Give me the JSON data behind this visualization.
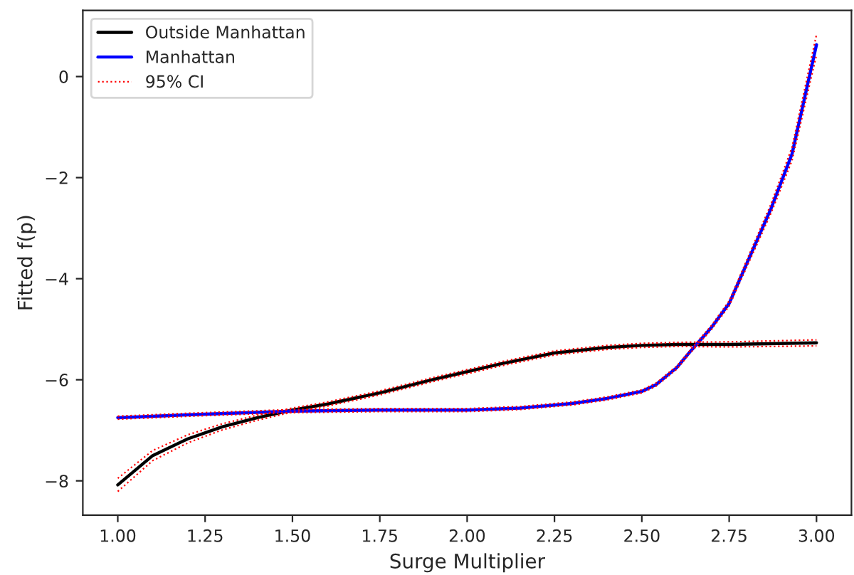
{
  "chart_data": {
    "type": "line",
    "xlabel": "Surge Multiplier",
    "ylabel": "Fitted f(p)",
    "xlim": [
      0.9,
      3.1
    ],
    "xticks": [
      {
        "value": 1,
        "label": "1.00"
      },
      {
        "value": 1.25,
        "label": "1.25"
      },
      {
        "value": 1.5,
        "label": "1.50"
      },
      {
        "value": 1.75,
        "label": "1.75"
      },
      {
        "value": 2,
        "label": "2.00"
      },
      {
        "value": 2.25,
        "label": "2.25"
      },
      {
        "value": 2.5,
        "label": "2.50"
      },
      {
        "value": 2.75,
        "label": "2.75"
      },
      {
        "value": 3,
        "label": "3.00"
      }
    ],
    "ylim": [
      -8.68,
      1.31
    ],
    "yticks": [
      {
        "value": -8,
        "label": "−8"
      },
      {
        "value": -6,
        "label": "−6"
      },
      {
        "value": -4,
        "label": "−4"
      },
      {
        "value": -2,
        "label": "−2"
      },
      0
    ],
    "grid": false,
    "legend": "top left",
    "marker": "none",
    "series": [
      {
        "name": "Outside Manhattan",
        "color": "#000000",
        "line_style": "solid",
        "x": [
          1.0,
          1.1,
          1.2,
          1.3,
          1.4,
          1.5,
          1.6,
          1.75,
          1.9,
          2.0,
          2.1,
          2.25,
          2.4,
          2.5,
          2.6,
          2.75,
          3.0
        ],
        "values": [
          -8.08,
          -7.5,
          -7.17,
          -6.93,
          -6.75,
          -6.6,
          -6.48,
          -6.26,
          -6.0,
          -5.84,
          -5.68,
          -5.47,
          -5.36,
          -5.32,
          -5.3,
          -5.3,
          -5.27
        ]
      },
      {
        "name": "Manhattan",
        "color": "#0000ff",
        "line_style": "solid",
        "x": [
          1.0,
          1.25,
          1.5,
          1.75,
          2.0,
          2.15,
          2.3,
          2.4,
          2.5,
          2.54,
          2.6,
          2.64,
          2.7,
          2.75,
          2.81,
          2.87,
          2.93,
          3.0
        ],
        "values": [
          -6.75,
          -6.68,
          -6.62,
          -6.6,
          -6.6,
          -6.56,
          -6.47,
          -6.37,
          -6.23,
          -6.1,
          -5.76,
          -5.43,
          -4.96,
          -4.49,
          -3.55,
          -2.61,
          -1.53,
          0.63
        ]
      },
      {
        "name": "95% CI",
        "color": "#ff0000",
        "line_style": "dotted",
        "x": [
          1.0,
          1.1,
          1.2,
          1.3,
          1.4,
          1.5,
          1.6,
          1.75,
          1.9,
          2.0,
          2.1,
          2.25,
          2.4,
          2.5,
          2.6,
          2.75,
          3.0
        ],
        "values": [
          -8.21,
          -7.6,
          -7.25,
          -6.99,
          -6.8,
          -6.64,
          -6.52,
          -6.3,
          -6.04,
          -5.88,
          -5.72,
          -5.51,
          -5.4,
          -5.36,
          -5.34,
          -5.35,
          -5.33
        ]
      },
      {
        "color": "#ff0000",
        "line_style": "dotted",
        "x": [
          1.0,
          1.1,
          1.2,
          1.3,
          1.4,
          1.5,
          1.6,
          1.75,
          1.9,
          2.0,
          2.1,
          2.25,
          2.4,
          2.5,
          2.6,
          2.75,
          3.0
        ],
        "values": [
          -7.95,
          -7.4,
          -7.09,
          -6.87,
          -6.7,
          -6.56,
          -6.44,
          -6.22,
          -5.96,
          -5.8,
          -5.64,
          -5.43,
          -5.32,
          -5.28,
          -5.26,
          -5.25,
          -5.21
        ]
      },
      {
        "color": "#ff0000",
        "line_style": "dotted",
        "x": [
          1.0,
          1.25,
          1.5,
          1.75,
          2.0,
          2.15,
          2.3,
          2.4,
          2.5,
          2.54,
          2.6,
          2.64,
          2.7,
          2.75,
          2.81,
          2.87,
          2.93,
          3.0
        ],
        "values": [
          -6.78,
          -6.71,
          -6.65,
          -6.63,
          -6.63,
          -6.59,
          -6.5,
          -6.4,
          -6.26,
          -6.13,
          -5.79,
          -5.46,
          -5.0,
          -4.54,
          -3.62,
          -2.7,
          -1.66,
          0.43
        ]
      },
      {
        "color": "#ff0000",
        "line_style": "dotted",
        "x": [
          1.0,
          1.25,
          1.5,
          1.75,
          2.0,
          2.15,
          2.3,
          2.4,
          2.5,
          2.54,
          2.6,
          2.64,
          2.7,
          2.75,
          2.81,
          2.87,
          2.93,
          3.0
        ],
        "values": [
          -6.72,
          -6.65,
          -6.59,
          -6.57,
          -6.57,
          -6.53,
          -6.44,
          -6.34,
          -6.2,
          -6.07,
          -5.73,
          -5.4,
          -4.92,
          -4.44,
          -3.48,
          -2.52,
          -1.4,
          0.83
        ]
      }
    ]
  }
}
